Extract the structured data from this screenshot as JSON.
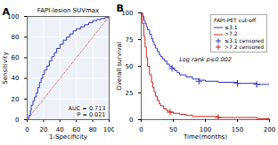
{
  "chart_data": [
    {
      "type": "line",
      "title": "FAPI-lesion SUVmax",
      "panel_label": "A",
      "x_label": "1-Specificity",
      "y_label": "Sensitivity",
      "annotations": [
        "AUC = 0.713",
        "P = 0.021"
      ],
      "xlim": [
        0,
        100
      ],
      "ylim": [
        0,
        100
      ],
      "xticks": [
        0,
        20,
        40,
        60,
        80,
        100
      ],
      "yticks": [
        0,
        20,
        40,
        60,
        80,
        100
      ],
      "grid": true,
      "background_color": "#eef2f8",
      "series": [
        {
          "type": "line",
          "x": [
            0,
            100
          ],
          "values": [
            0,
            100
          ],
          "color": "#e08080",
          "line_style": "dashed"
        },
        {
          "type": "step",
          "x": [
            0,
            2,
            4,
            5,
            7,
            9,
            11,
            13,
            15,
            17,
            19,
            21,
            24,
            27,
            30,
            33,
            36,
            40,
            44,
            48,
            52,
            56,
            60,
            65,
            70,
            75,
            80,
            85,
            90,
            95,
            100
          ],
          "values": [
            0,
            4,
            9,
            14,
            18,
            22,
            26,
            31,
            36,
            40,
            44,
            48,
            52,
            57,
            61,
            65,
            69,
            73,
            77,
            80,
            83,
            86,
            88,
            90,
            92,
            94,
            96,
            97,
            98,
            99,
            100
          ],
          "color": "#3333bb"
        }
      ]
    },
    {
      "type": "line",
      "panel_label": "B",
      "x_label": "Time(months)",
      "y_label": "Overall survival",
      "annotations": [
        "Log rank p≤0.002"
      ],
      "xlim": [
        0,
        200
      ],
      "ylim": [
        0,
        100
      ],
      "xticks": [
        0,
        50,
        100,
        150,
        200
      ],
      "yticks": [
        0,
        25,
        50,
        75,
        100
      ],
      "grid": false,
      "legend": "upper right",
      "legend_title": "FAPI-PET cut-off",
      "series": [
        {
          "name": "≤3.1",
          "type": "step",
          "color": "#3333bb",
          "x": [
            0,
            2,
            4,
            6,
            8,
            10,
            13,
            16,
            18,
            20,
            22,
            25,
            28,
            30,
            33,
            36,
            40,
            44,
            48,
            52,
            56,
            60,
            70,
            80,
            90,
            100,
            120,
            150,
            180,
            200
          ],
          "values": [
            100,
            97,
            93,
            90,
            87,
            84,
            80,
            76,
            73,
            70,
            67,
            64,
            61,
            59,
            57,
            55,
            52,
            50,
            48,
            46,
            44,
            42,
            40,
            38,
            37,
            36,
            35,
            34,
            33,
            33
          ]
        },
        {
          "name": ">7.2",
          "type": "step",
          "color": "#cc2222",
          "x": [
            0,
            2,
            4,
            6,
            8,
            10,
            13,
            16,
            18,
            20,
            22,
            25,
            28,
            30,
            35,
            40,
            45,
            50,
            60,
            70,
            80,
            100,
            120,
            150,
            180,
            200
          ],
          "values": [
            100,
            90,
            78,
            68,
            58,
            50,
            42,
            35,
            30,
            26,
            22,
            18,
            15,
            13,
            10,
            8,
            7,
            6,
            5,
            4,
            3,
            3,
            2,
            2,
            1,
            1
          ]
        },
        {
          "name": "≤3.1 censored",
          "type": "scatter",
          "marker": "plus",
          "color": "#3333bb",
          "x": [
            48,
            90,
            150,
            180
          ],
          "values": [
            48,
            36,
            34,
            33
          ]
        },
        {
          "name": ">7.2 censored",
          "type": "scatter",
          "marker": "plus",
          "color": "#cc2222",
          "x": [
            45,
            120,
            200
          ],
          "values": [
            7,
            2,
            1
          ]
        }
      ]
    }
  ]
}
